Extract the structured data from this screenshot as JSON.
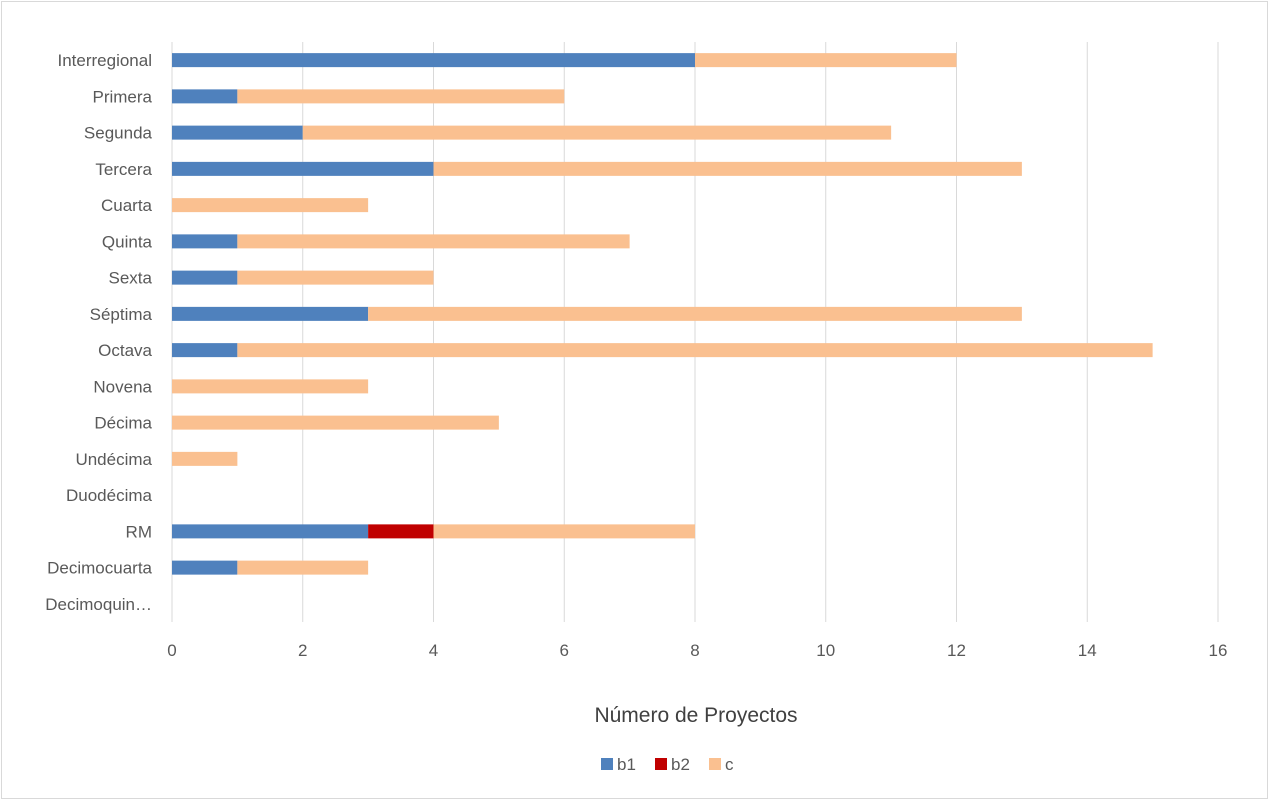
{
  "chart_data": {
    "type": "bar",
    "orientation": "horizontal",
    "stacked": true,
    "categories": [
      "Interregional",
      "Primera",
      "Segunda",
      "Tercera",
      "Cuarta",
      "Quinta",
      "Sexta",
      "Séptima",
      "Octava",
      "Novena",
      "Décima",
      "Undécima",
      "Duodécima",
      "RM",
      "Decimocuarta",
      "Decimoquin…"
    ],
    "series": [
      {
        "name": "b1",
        "color": "#4f81bd",
        "values": [
          8,
          1,
          2,
          4,
          0,
          1,
          1,
          3,
          1,
          0,
          0,
          0,
          0,
          3,
          1,
          0
        ]
      },
      {
        "name": "b2",
        "color": "#c00000",
        "values": [
          0,
          0,
          0,
          0,
          0,
          0,
          0,
          0,
          0,
          0,
          0,
          0,
          0,
          1,
          0,
          0
        ]
      },
      {
        "name": "c",
        "color": "#fac090",
        "values": [
          4,
          5,
          9,
          9,
          3,
          6,
          3,
          10,
          14,
          3,
          5,
          1,
          0,
          4,
          2,
          0
        ]
      }
    ],
    "xlabel": "Número de Proyectos",
    "ylabel": "",
    "title": "",
    "xlim": [
      0,
      16
    ],
    "xticks": [
      0,
      2,
      4,
      6,
      8,
      10,
      12,
      14,
      16
    ],
    "grid": true,
    "legend_position": "bottom"
  }
}
